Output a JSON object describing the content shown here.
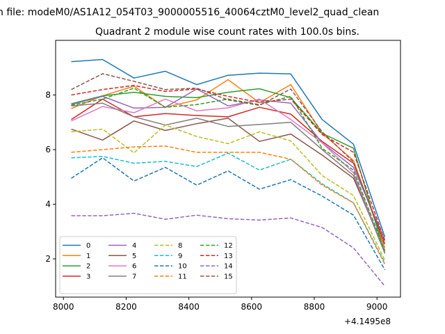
{
  "figure": {
    "suptitle": "n file: modeM0/AS1A12_054T03_9000005516_40064cztM0_level2_quad_clean"
  },
  "chart_data": {
    "type": "line",
    "title": "Quadrant 2 module wise count rates with 100.0s bins.",
    "xlabel": "",
    "ylabel": "",
    "x_offset_label": "+4.1495e8",
    "x": [
      8025,
      8125,
      8225,
      8325,
      8425,
      8525,
      8625,
      8725,
      8825,
      8925,
      9025
    ],
    "xlim": [
      7975,
      9075
    ],
    "ylim": [
      0.6,
      10.0
    ],
    "xticks": [
      8000,
      8200,
      8400,
      8600,
      8800,
      9000
    ],
    "yticks": [
      2,
      4,
      6,
      8
    ],
    "grid": false,
    "legend_position": "lower-left",
    "legend_columns": 4,
    "series": [
      {
        "name": "0",
        "color": "#1f77b4",
        "dash": "solid",
        "values": [
          9.22,
          9.3,
          8.62,
          8.87,
          8.38,
          8.72,
          8.8,
          8.77,
          7.1,
          6.2,
          2.8
        ]
      },
      {
        "name": "1",
        "color": "#ff7f0e",
        "dash": "solid",
        "values": [
          7.5,
          7.97,
          8.32,
          7.55,
          7.82,
          8.56,
          7.72,
          8.38,
          6.6,
          5.6,
          2.4
        ]
      },
      {
        "name": "2",
        "color": "#2ca02c",
        "dash": "solid",
        "values": [
          7.68,
          7.97,
          8.1,
          7.95,
          7.9,
          8.1,
          8.23,
          7.9,
          6.6,
          6.05,
          2.2
        ]
      },
      {
        "name": "3",
        "color": "#d62728",
        "dash": "solid",
        "values": [
          7.1,
          7.85,
          7.2,
          7.32,
          7.25,
          7.2,
          7.55,
          7.3,
          6.3,
          5.5,
          2.55
        ]
      },
      {
        "name": "4",
        "color": "#9467bd",
        "dash": "solid",
        "values": [
          7.65,
          7.95,
          7.52,
          7.55,
          8.22,
          7.6,
          7.82,
          7.7,
          6.25,
          5.35,
          2.7
        ]
      },
      {
        "name": "5",
        "color": "#8c564b",
        "dash": "solid",
        "values": [
          6.75,
          6.35,
          7.05,
          6.7,
          6.95,
          7.15,
          6.3,
          6.57,
          5.8,
          4.95,
          2.3
        ]
      },
      {
        "name": "6",
        "color": "#e377c2",
        "dash": "solid",
        "values": [
          7.05,
          7.58,
          7.35,
          7.85,
          7.42,
          7.53,
          7.85,
          7.1,
          6.25,
          5.15,
          2.25
        ]
      },
      {
        "name": "7",
        "color": "#7f7f7f",
        "dash": "solid",
        "values": [
          7.6,
          7.7,
          7.2,
          6.9,
          7.15,
          6.85,
          6.92,
          7.0,
          6.0,
          5.05,
          2.2
        ]
      },
      {
        "name": "8",
        "color": "#bcbd22",
        "dash": "dashed",
        "values": [
          6.65,
          6.75,
          5.88,
          6.9,
          6.48,
          6.22,
          6.65,
          6.32,
          5.05,
          4.32,
          1.95
        ]
      },
      {
        "name": "9",
        "color": "#17becf",
        "dash": "dashed",
        "values": [
          5.7,
          5.75,
          5.5,
          5.57,
          5.38,
          5.87,
          5.25,
          5.65,
          4.75,
          4.05,
          1.85
        ]
      },
      {
        "name": "10",
        "color": "#1f77b4",
        "dash": "dashed",
        "values": [
          4.95,
          5.7,
          4.85,
          5.35,
          4.7,
          5.22,
          4.55,
          4.9,
          4.3,
          3.6,
          1.6
        ]
      },
      {
        "name": "11",
        "color": "#ff7f0e",
        "dash": "dashed",
        "values": [
          5.9,
          6.0,
          6.1,
          6.13,
          5.9,
          5.9,
          5.9,
          5.65,
          4.7,
          4.05,
          1.8
        ]
      },
      {
        "name": "12",
        "color": "#2ca02c",
        "dash": "dashed",
        "values": [
          7.62,
          7.85,
          8.25,
          7.55,
          7.65,
          7.85,
          7.65,
          7.95,
          6.05,
          5.25,
          2.3
        ]
      },
      {
        "name": "13",
        "color": "#d62728",
        "dash": "dashed",
        "values": [
          8.0,
          8.2,
          8.35,
          8.13,
          8.22,
          7.95,
          7.73,
          7.85,
          6.55,
          5.9,
          2.65
        ]
      },
      {
        "name": "14",
        "color": "#9467bd",
        "dash": "dashed",
        "values": [
          3.58,
          3.58,
          3.67,
          3.45,
          3.6,
          3.47,
          3.42,
          3.5,
          3.15,
          2.4,
          1.0
        ]
      },
      {
        "name": "15",
        "color": "#8c564b",
        "dash": "dashed",
        "values": [
          8.2,
          8.78,
          8.5,
          8.2,
          8.25,
          7.82,
          7.62,
          8.22,
          6.65,
          5.55,
          2.5
        ]
      }
    ]
  }
}
